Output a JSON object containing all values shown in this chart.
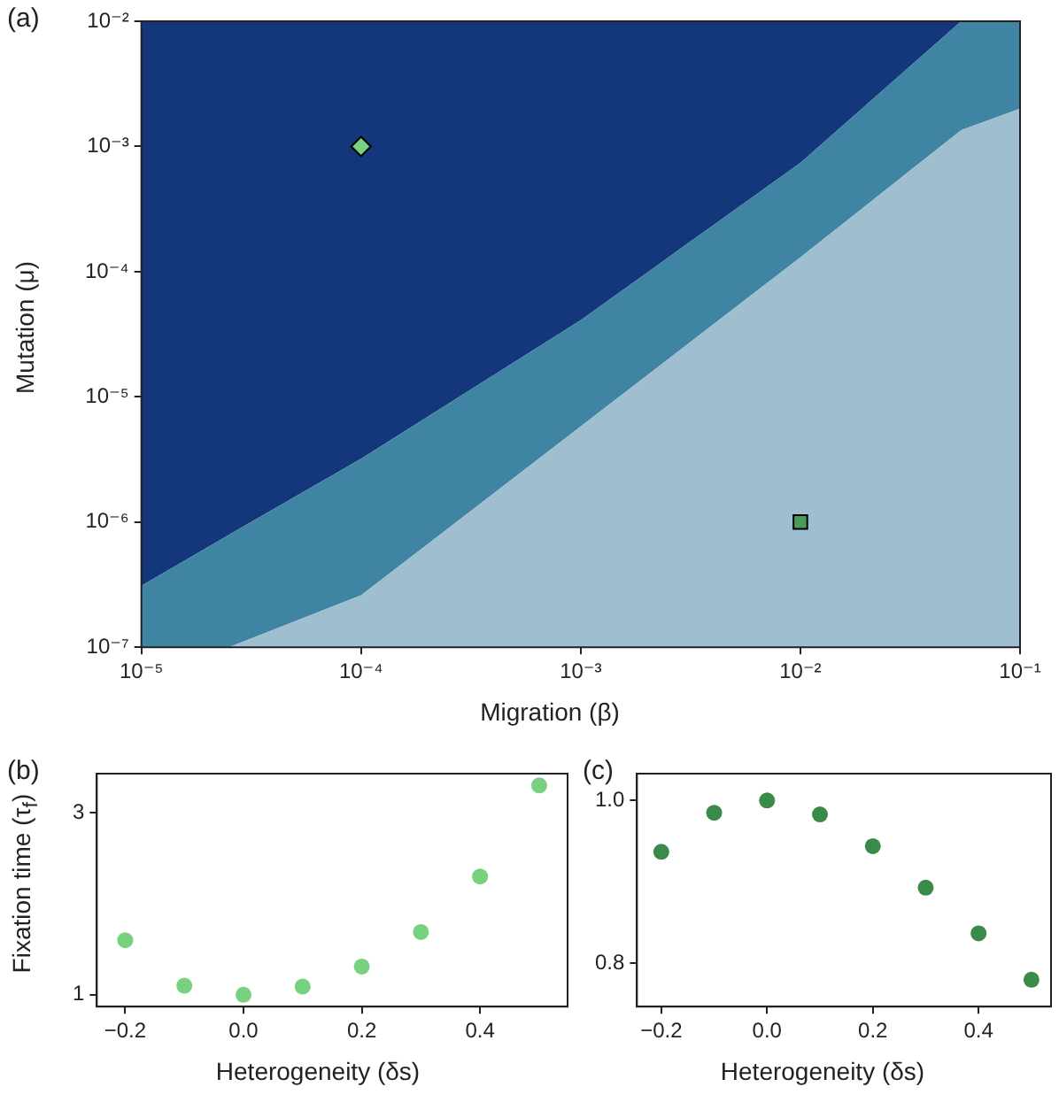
{
  "chart_data": [
    {
      "type": "area",
      "annotations": [
        "(a)"
      ],
      "xlabel": "Migration (β)",
      "ylabel": "Mutation (μ)",
      "log": "xy",
      "xlim": [
        1e-05,
        0.1
      ],
      "ylim": [
        1e-07,
        0.01
      ],
      "xticks": [
        {
          "value": 1e-05,
          "label": "10⁻⁵"
        },
        {
          "value": 0.0001,
          "label": "10⁻⁴"
        },
        {
          "value": 0.001,
          "label": "10⁻³"
        },
        {
          "value": 0.01,
          "label": "10⁻²"
        },
        {
          "value": 0.1,
          "label": "10⁻¹"
        }
      ],
      "yticks": [
        {
          "value": 1e-07,
          "label": "10⁻⁷"
        },
        {
          "value": 1e-06,
          "label": "10⁻⁶"
        },
        {
          "value": 1e-05,
          "label": "10⁻⁵"
        },
        {
          "value": 0.0001,
          "label": "10⁻⁴"
        },
        {
          "value": 0.001,
          "label": "10⁻³"
        },
        {
          "value": 0.01,
          "label": "10⁻²"
        }
      ],
      "series": [
        {
          "type": "area",
          "color": "#9fbed0",
          "x": [
            1e-05,
            2.5e-05,
            0.0001,
            0.001,
            0.01,
            0.054,
            0.1
          ],
          "values": [
            1e-07,
            1e-07,
            2.6e-07,
            5.8e-06,
            0.00013,
            0.00135,
            0.002
          ]
        },
        {
          "type": "area",
          "color": "#3f84a2",
          "x": [
            1e-05,
            2.5e-05,
            0.0001,
            0.001,
            0.01,
            0.054,
            0.1
          ],
          "values": [
            3.1e-07,
            7.9e-07,
            3.2e-06,
            4.1e-05,
            0.00074,
            0.01,
            0.01
          ]
        },
        {
          "type": "area",
          "color": "#13377a",
          "x": [
            1e-05,
            2.5e-05,
            0.0001,
            0.001,
            0.01,
            0.054,
            0.1
          ],
          "values": [
            0.01,
            0.01,
            0.01,
            0.01,
            0.01,
            0.01,
            0.01
          ]
        },
        {
          "type": "scatter",
          "marker": "diamond",
          "color": "#77d17f",
          "x": [
            0.0001
          ],
          "values": [
            0.001
          ]
        },
        {
          "type": "scatter",
          "marker": "square",
          "color": "#4c9a5a",
          "x": [
            0.01
          ],
          "values": [
            1e-06
          ]
        }
      ]
    },
    {
      "type": "scatter",
      "annotations": [
        "(b)"
      ],
      "xlabel": "Heterogeneity (δs)",
      "ylabel": "Fixation time (τ$_{f}$)",
      "marker": "circle",
      "color": "#77d17f",
      "x": [
        -0.2,
        -0.1,
        0,
        0.1,
        0.2,
        0.3,
        0.4,
        0.5
      ],
      "values": [
        1.6,
        1.1,
        1.0,
        1.09,
        1.31,
        1.69,
        2.3,
        3.3
      ],
      "xlim": [
        -0.248,
        0.548
      ],
      "ylim": [
        0.87,
        3.43
      ],
      "xticks": [
        {
          "value": -0.2,
          "label": "−0.2"
        },
        {
          "value": 0,
          "label": "0.0"
        },
        {
          "value": 0.2,
          "label": "0.2"
        },
        {
          "value": 0.4,
          "label": "0.4"
        }
      ],
      "yticks": [
        {
          "value": 1,
          "label": "1"
        },
        {
          "value": 3,
          "label": "3"
        }
      ]
    },
    {
      "type": "scatter",
      "annotations": [
        "(c)"
      ],
      "xlabel": "Heterogeneity (δs)",
      "marker": "circle",
      "color": "#3a8a4a",
      "x": [
        -0.2,
        -0.1,
        0,
        0.1,
        0.2,
        0.3,
        0.4,
        0.5
      ],
      "values": [
        0.937,
        0.985,
        1.0,
        0.983,
        0.944,
        0.893,
        0.837,
        0.78
      ],
      "xlim": [
        -0.246,
        0.537
      ],
      "ylim": [
        0.747,
        1.033
      ],
      "xticks": [
        {
          "value": -0.2,
          "label": "−0.2"
        },
        {
          "value": 0,
          "label": "0.0"
        },
        0.2,
        0.4
      ],
      "yticks": [
        {
          "value": 1,
          "label": "1.0"
        },
        0.8
      ]
    }
  ]
}
